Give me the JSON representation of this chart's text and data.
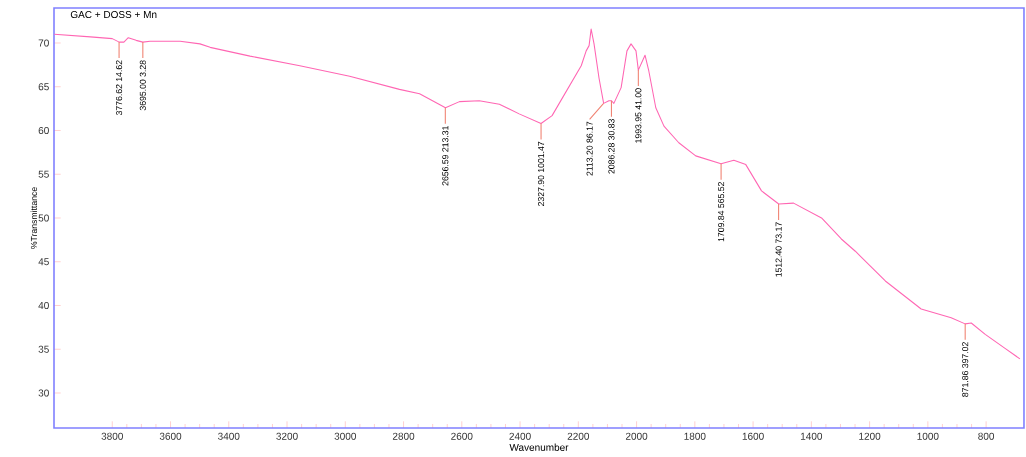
{
  "chart_data": {
    "type": "line",
    "title": "GAC + DOSS + Mn",
    "xlabel": "Wavenumber",
    "ylabel": "%Transmittance",
    "xlim": [
      4000,
      670
    ],
    "ylim": [
      26,
      74
    ],
    "xticks": [
      3800,
      3600,
      3400,
      3200,
      3000,
      2800,
      2600,
      2400,
      2200,
      2000,
      1800,
      1600,
      1400,
      1200,
      1000,
      800
    ],
    "yticks": [
      30,
      35,
      40,
      45,
      50,
      55,
      60,
      65,
      70
    ],
    "grid": false,
    "series": [
      {
        "color": "#ff66b3",
        "x": [
          3999,
          3875,
          3800,
          3776,
          3760,
          3745,
          3718,
          3695,
          3670,
          3636,
          3567,
          3499,
          3464,
          3327,
          3156,
          2985,
          2814,
          2745,
          2656,
          2608,
          2540,
          2471,
          2403,
          2328,
          2290,
          2255,
          2190,
          2173,
          2163,
          2156,
          2146,
          2129,
          2113,
          2095,
          2086,
          2078,
          2053,
          2033,
          2019,
          2002,
          1994,
          1971,
          1958,
          1934,
          1906,
          1855,
          1797,
          1710,
          1666,
          1625,
          1571,
          1512,
          1461,
          1365,
          1297,
          1249,
          1146,
          1023,
          920,
          872,
          851,
          803,
          735,
          684
        ],
        "values": [
          71.0,
          70.7,
          70.5,
          70.1,
          70.1,
          70.6,
          70.3,
          70.1,
          70.2,
          70.2,
          70.2,
          69.9,
          69.5,
          68.5,
          67.4,
          66.2,
          64.7,
          64.2,
          62.6,
          63.3,
          63.4,
          63.0,
          61.9,
          60.8,
          61.7,
          63.7,
          67.4,
          69.1,
          69.7,
          71.6,
          69.9,
          66.0,
          63.1,
          63.4,
          63.4,
          63.1,
          64.9,
          69.1,
          69.9,
          69.1,
          66.9,
          68.6,
          66.8,
          62.6,
          60.5,
          58.6,
          57.1,
          56.2,
          56.6,
          56.1,
          53.1,
          51.6,
          51.7,
          50.0,
          47.6,
          46.2,
          42.8,
          39.6,
          38.6,
          37.9,
          38.0,
          36.7,
          35.1,
          33.9
        ]
      }
    ],
    "annotations": [
      {
        "text": "3776.62  14.62",
        "x": 3776.62,
        "y": 70.1
      },
      {
        "text": "3695.00  3.28",
        "x": 3695.0,
        "y": 70.1
      },
      {
        "text": "2656.59  213.31",
        "x": 2656.59,
        "y": 62.6
      },
      {
        "text": "2327.90  1001.47",
        "x": 2327.9,
        "y": 60.8
      },
      {
        "text": "2113.20  86.17",
        "x": 2113.2,
        "y": 63.1
      },
      {
        "text": "2086.28  30.83",
        "x": 2086.28,
        "y": 63.4
      },
      {
        "text": "1993.95  41.00",
        "x": 1993.95,
        "y": 66.9
      },
      {
        "text": "1709.84  565.52",
        "x": 1709.84,
        "y": 56.2
      },
      {
        "text": "1512.40  73.17",
        "x": 1512.4,
        "y": 51.6
      },
      {
        "text": "871.86  397.02",
        "x": 871.86,
        "y": 37.9
      }
    ]
  }
}
